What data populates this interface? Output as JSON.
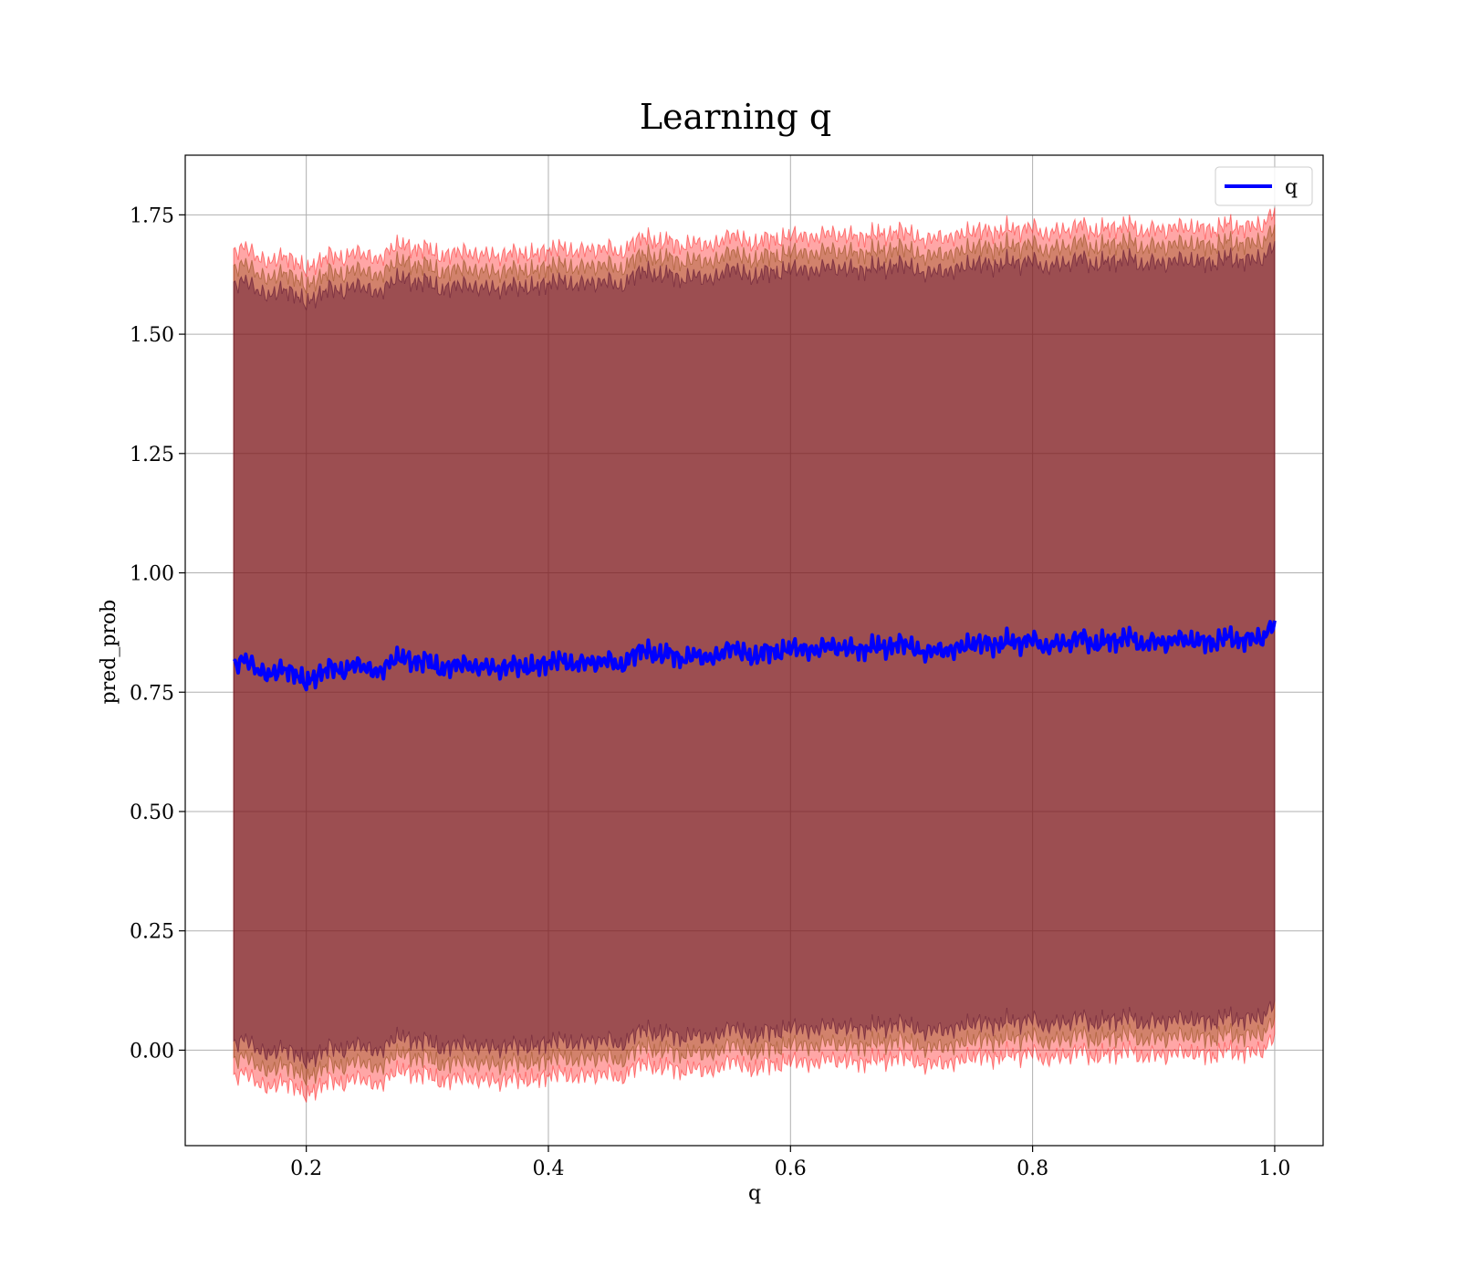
{
  "chart_data": {
    "type": "line",
    "title": "Learning q",
    "xlabel": "q",
    "ylabel": "pred_prob",
    "xlim": [
      0.1,
      1.04
    ],
    "ylim": [
      -0.2,
      1.875
    ],
    "x_ticks": [
      0.2,
      0.4,
      0.6,
      0.8,
      1.0
    ],
    "x_tick_labels": [
      "0.2",
      "0.4",
      "0.6",
      "0.8",
      "1.0"
    ],
    "y_ticks": [
      0.0,
      0.25,
      0.5,
      0.75,
      1.0,
      1.25,
      1.5,
      1.75
    ],
    "y_tick_labels": [
      "0.00",
      "0.25",
      "0.50",
      "0.75",
      "1.00",
      "1.25",
      "1.50",
      "1.75"
    ],
    "grid": true,
    "legend": {
      "position": "top-right",
      "entries": [
        "q"
      ]
    },
    "series": [
      {
        "name": "q",
        "color": "#0000ff",
        "x": [
          0.14,
          0.15,
          0.16,
          0.17,
          0.18,
          0.19,
          0.2,
          0.21,
          0.22,
          0.23,
          0.24,
          0.25,
          0.26,
          0.27,
          0.28,
          0.29,
          0.3,
          0.31,
          0.32,
          0.33,
          0.34,
          0.35,
          0.36,
          0.37,
          0.38,
          0.39,
          0.4,
          0.41,
          0.42,
          0.43,
          0.44,
          0.45,
          0.46,
          0.47,
          0.48,
          0.49,
          0.5,
          0.51,
          0.52,
          0.53,
          0.54,
          0.55,
          0.56,
          0.57,
          0.58,
          0.59,
          0.6,
          0.61,
          0.62,
          0.63,
          0.64,
          0.65,
          0.66,
          0.67,
          0.68,
          0.69,
          0.7,
          0.71,
          0.72,
          0.73,
          0.74,
          0.75,
          0.76,
          0.77,
          0.78,
          0.79,
          0.8,
          0.81,
          0.82,
          0.83,
          0.84,
          0.85,
          0.86,
          0.87,
          0.88,
          0.89,
          0.9,
          0.91,
          0.92,
          0.93,
          0.94,
          0.95,
          0.96,
          0.97,
          0.98,
          0.99,
          1.0
        ],
        "y": [
          0.805,
          0.82,
          0.795,
          0.785,
          0.8,
          0.79,
          0.77,
          0.785,
          0.805,
          0.79,
          0.81,
          0.8,
          0.79,
          0.815,
          0.825,
          0.81,
          0.82,
          0.795,
          0.805,
          0.81,
          0.8,
          0.805,
          0.795,
          0.81,
          0.8,
          0.805,
          0.81,
          0.82,
          0.805,
          0.815,
          0.81,
          0.82,
          0.8,
          0.83,
          0.84,
          0.825,
          0.835,
          0.815,
          0.83,
          0.82,
          0.825,
          0.845,
          0.835,
          0.82,
          0.84,
          0.83,
          0.845,
          0.84,
          0.835,
          0.85,
          0.84,
          0.845,
          0.835,
          0.85,
          0.84,
          0.855,
          0.845,
          0.83,
          0.84,
          0.835,
          0.845,
          0.85,
          0.855,
          0.845,
          0.86,
          0.85,
          0.865,
          0.84,
          0.855,
          0.85,
          0.87,
          0.845,
          0.86,
          0.855,
          0.87,
          0.845,
          0.86,
          0.85,
          0.865,
          0.855,
          0.86,
          0.85,
          0.87,
          0.855,
          0.865,
          0.86,
          0.9
        ]
      }
    ],
    "bands": [
      {
        "color": "#ff0000",
        "opacity": 0.35,
        "upper_offset": 0.865,
        "lower_offset": -0.865
      },
      {
        "color": "#7f3f00",
        "opacity": 0.35,
        "upper_offset": 0.83,
        "lower_offset": -0.83
      },
      {
        "color": "#5a1030",
        "opacity": 0.45,
        "upper_offset": 0.795,
        "lower_offset": -0.795
      }
    ]
  }
}
